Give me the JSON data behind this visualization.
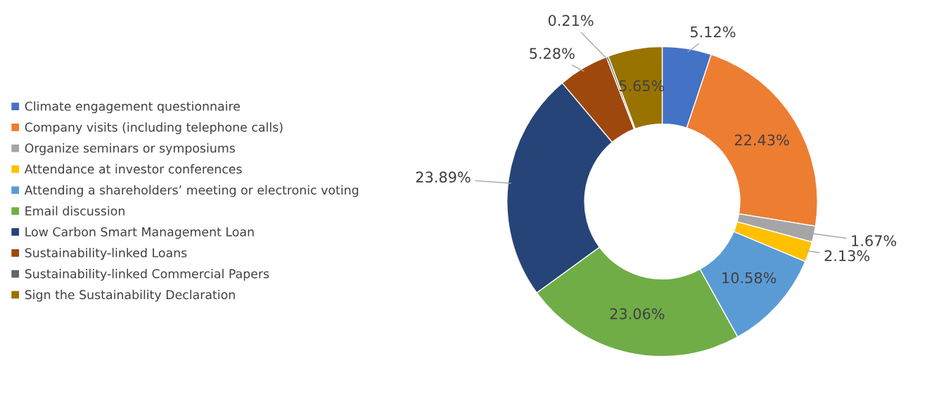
{
  "chart_data": {
    "type": "donut",
    "categories": [
      "Climate engagement questionnaire",
      "Company visits (including telephone calls)",
      "Organize seminars or symposiums",
      "Attendance at investor conferences",
      "Attending a shareholders’ meeting or electronic voting",
      "Email discussion",
      "Low Carbon Smart Management Loan",
      "Sustainability-linked Loans",
      "Sustainability-linked Commercial Papers",
      "Sign the Sustainability Declaration"
    ],
    "values": [
      5.12,
      22.43,
      1.67,
      2.13,
      10.58,
      23.06,
      23.89,
      5.28,
      0.21,
      5.65
    ],
    "value_labels": [
      "5.12%",
      "22.43%",
      "1.67%",
      "2.13%",
      "10.58%",
      "23.06%",
      "23.89%",
      "5.28%",
      "0.21%",
      "5.65%"
    ],
    "colors": [
      "#4472c4",
      "#ed7d31",
      "#a5a5a5",
      "#ffc000",
      "#5b9bd5",
      "#70ad47",
      "#264478",
      "#9e480e",
      "#636363",
      "#997300"
    ],
    "legend": "left"
  }
}
